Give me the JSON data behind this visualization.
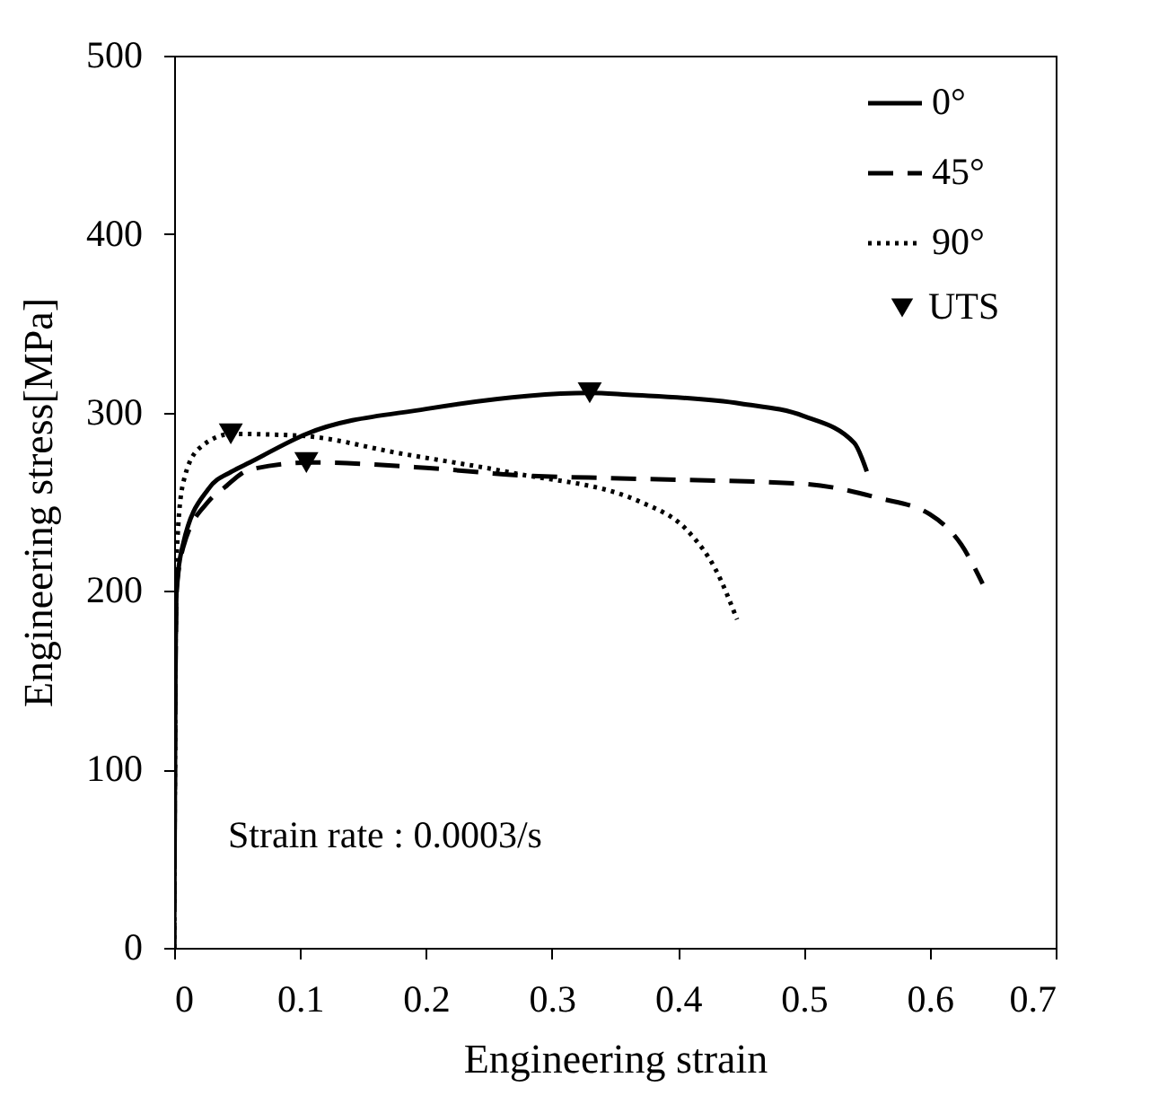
{
  "chart_data": {
    "type": "line",
    "xlabel": "Engineering strain",
    "ylabel": "Engineering stress[MPa]",
    "xlim": [
      0,
      0.7
    ],
    "xticks": [
      0,
      0.1,
      0.2,
      0.3,
      0.4,
      0.5,
      0.6,
      0.7
    ],
    "ylim": [
      0,
      500
    ],
    "yticks": [
      0,
      100,
      200,
      300,
      400,
      500
    ],
    "grid": false,
    "legend": "top right",
    "annotations": [
      "Strain rate : 0.0003/s"
    ],
    "series": [
      {
        "name": "0°",
        "color": "#000000",
        "line_style": "solid",
        "x": [
          0,
          0.001,
          0.002,
          0.007,
          0.027,
          0.046,
          0.06,
          0.105,
          0.2,
          0.33,
          0.36,
          0.45,
          0.5,
          0.54,
          0.55
        ],
        "values": [
          0,
          150,
          202,
          226,
          257,
          267,
          272,
          288,
          302,
          311,
          310,
          305,
          298,
          283,
          267
        ]
      },
      {
        "name": "45°",
        "color": "#000000",
        "line_style": "dashed",
        "x": [
          0,
          0.001,
          0.002,
          0.007,
          0.027,
          0.04,
          0.06,
          0.11,
          0.2,
          0.27,
          0.36,
          0.5,
          0.56,
          0.6,
          0.625,
          0.642
        ],
        "values": [
          0,
          150,
          200,
          224,
          250,
          258,
          268,
          272,
          269,
          265,
          263,
          260,
          252,
          243,
          226,
          204
        ]
      },
      {
        "name": "90°",
        "color": "#000000",
        "line_style": "dotted",
        "x": [
          0,
          0.001,
          0.002,
          0.007,
          0.02,
          0.046,
          0.1,
          0.18,
          0.27,
          0.37,
          0.41,
          0.43,
          0.447
        ],
        "values": [
          0,
          160,
          220,
          260,
          280,
          288,
          287,
          277,
          266,
          250,
          232,
          212,
          184
        ]
      },
      {
        "name": "UTS",
        "type": "scatter",
        "marker": "triangle",
        "color": "#000000",
        "x": [
          0.045,
          0.105,
          0.33
        ],
        "values": [
          288,
          272,
          311
        ]
      }
    ]
  }
}
